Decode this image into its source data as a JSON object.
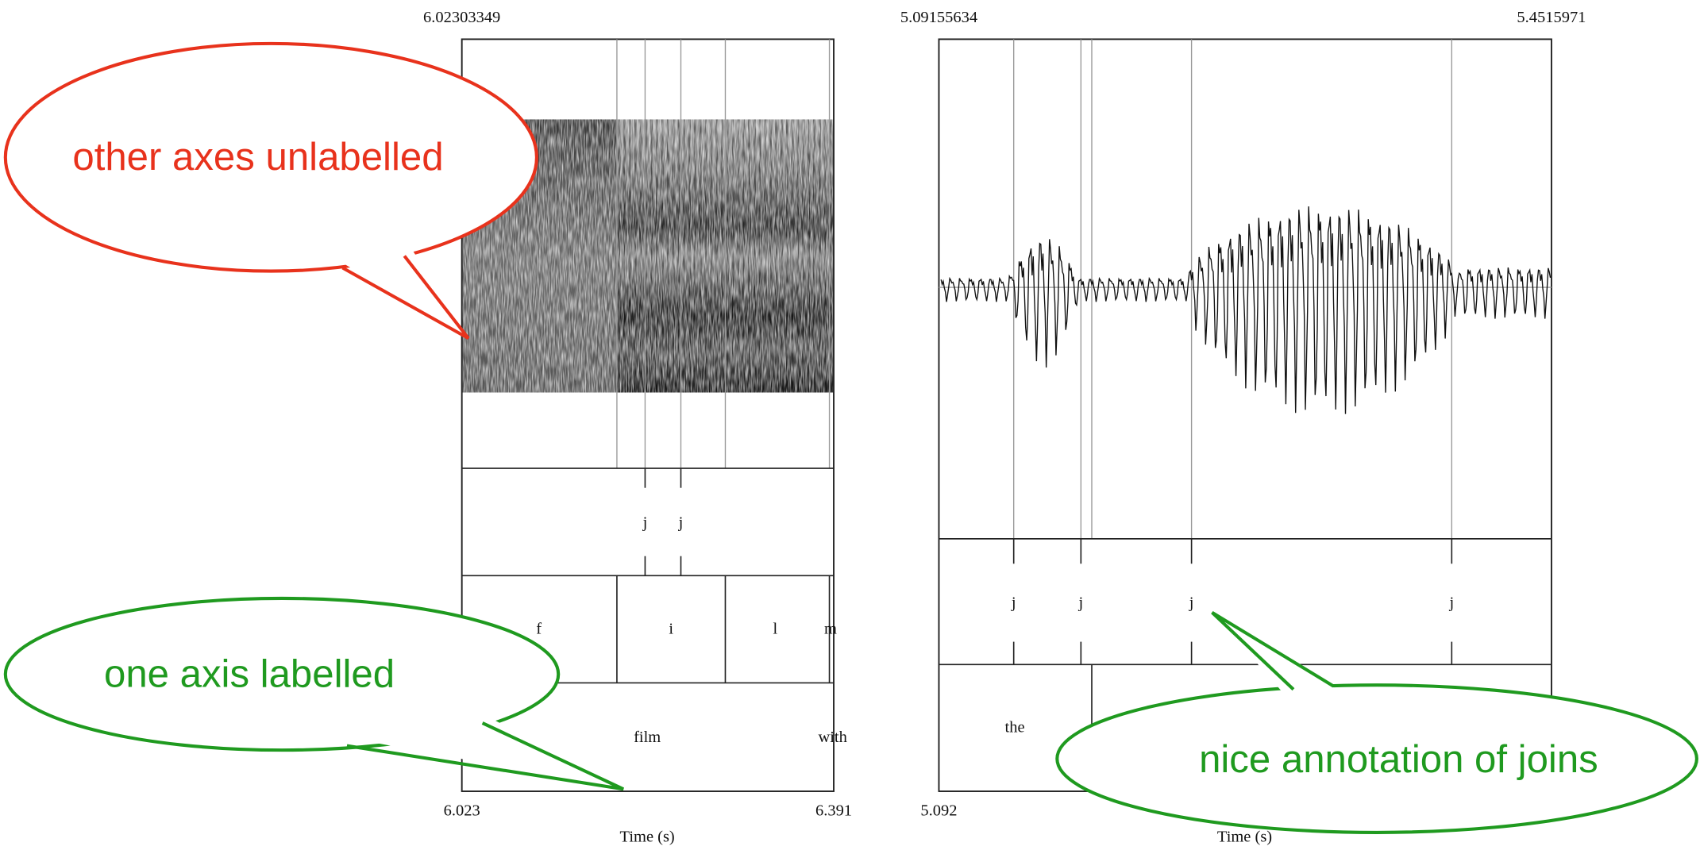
{
  "left_panel": {
    "top_time": "6.02303349",
    "start_time": "6.023",
    "end_time": "6.391",
    "x_axis_label": "Time (s)",
    "join_tier": [
      "j",
      "j"
    ],
    "segment_tier": [
      "f",
      "i",
      "l",
      "m"
    ],
    "word_tier": [
      "film",
      "with"
    ]
  },
  "right_panel": {
    "top_start_time": "5.09155634",
    "top_end_time": "5.4515971",
    "start_time": "5.092",
    "x_axis_label": "Time (s)",
    "join_tier": [
      "j",
      "j",
      "j",
      "j"
    ],
    "word_tier": [
      "the"
    ]
  },
  "callouts": [
    "other axes unlabelled",
    "one axis labelled",
    "nice annotation of joins"
  ]
}
